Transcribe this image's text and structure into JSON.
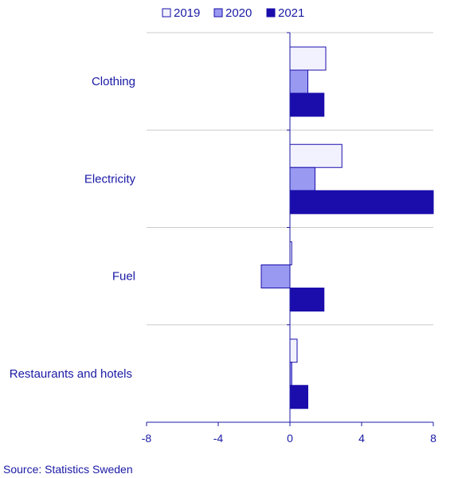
{
  "chart_data": {
    "type": "bar",
    "orientation": "horizontal",
    "categories": [
      "Clothing",
      "Electricity",
      "Fuel",
      "Restaurants and hotels"
    ],
    "series": [
      {
        "name": "2019",
        "values": [
          2.0,
          2.9,
          0.1,
          0.4
        ],
        "color": "#f2f2ff"
      },
      {
        "name": "2020",
        "values": [
          1.0,
          1.4,
          -1.6,
          0.1
        ],
        "color": "#9999f2"
      },
      {
        "name": "2021",
        "values": [
          1.9,
          8.0,
          1.9,
          1.0
        ],
        "color": "#1a0dab"
      }
    ],
    "xlim": [
      -8,
      8
    ],
    "xticks": [
      -8,
      -4,
      0,
      4,
      8
    ],
    "grid": "horizontal separators between categories",
    "legend": "top",
    "title": "",
    "xlabel": "",
    "ylabel": ""
  },
  "source": "Source: Statistics Sweden",
  "colors": {
    "text": "#1a1aa6",
    "axis": "#1a1aa6",
    "grid": "#cccccc",
    "bar_stroke": "#1a0dab"
  }
}
